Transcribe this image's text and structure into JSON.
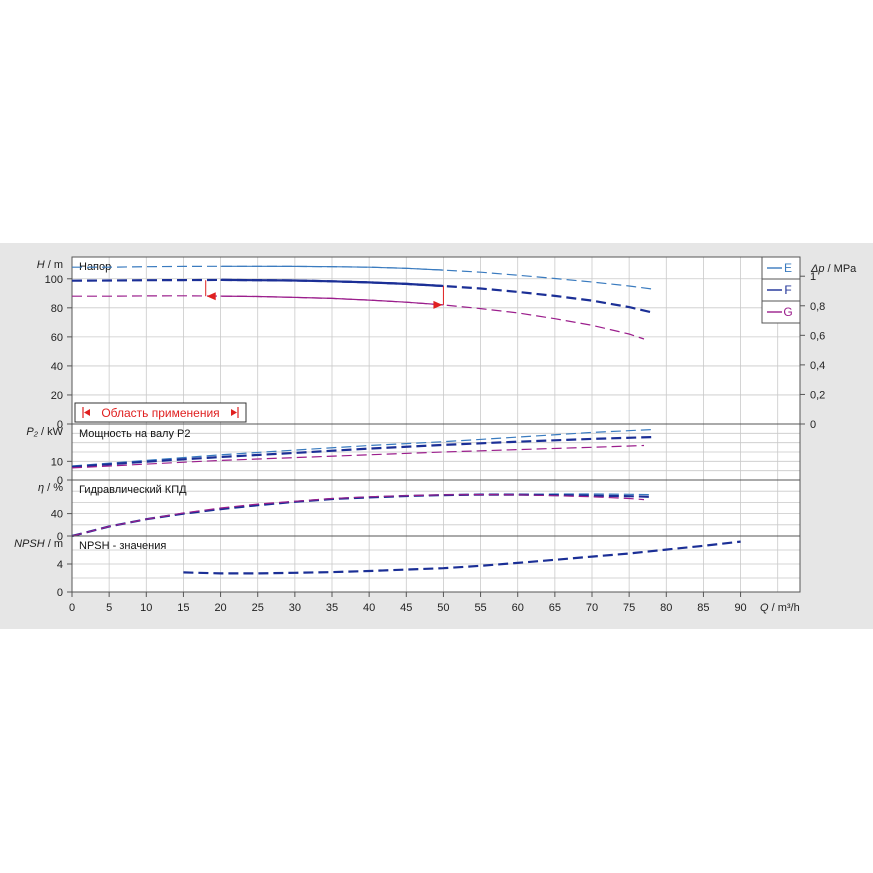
{
  "colors": {
    "E": "#3a7bbf",
    "F": "#1b2f96",
    "G": "#9b1e8c",
    "npsh": "#1b2f96",
    "range": "#e02020",
    "grid": "#c9c9c9",
    "panel": "#e6e6e6",
    "plot_bg": "#ffffff"
  },
  "legend": [
    {
      "label": "E",
      "color": "#3a7bbf"
    },
    {
      "label": "F",
      "color": "#1b2f96"
    },
    {
      "label": "G",
      "color": "#9b1e8c"
    }
  ],
  "range_box_label": "Область применения",
  "chart_data": [
    {
      "type": "line",
      "panel": "head",
      "title": "Напор",
      "ylabel_symbol": "H",
      "ylabel_unit": "m",
      "y2label_symbol": "Δp",
      "y2label_unit": "MPa",
      "xlim": [
        0,
        98
      ],
      "ylim": [
        0,
        115
      ],
      "y2lim": [
        0,
        1.13
      ],
      "yticks": [
        "0",
        "20",
        "40",
        "60",
        "80",
        "100"
      ],
      "y2ticks": [
        "0",
        "0,2",
        "0,4",
        "0,6",
        "0,8",
        "1"
      ],
      "grid": true,
      "series": [
        {
          "name": "E",
          "color": "#3a7bbf",
          "x": [
            0,
            5,
            10,
            15,
            20,
            25,
            30,
            35,
            40,
            45,
            50,
            55,
            60,
            65,
            70,
            75,
            78
          ],
          "y": [
            108,
            108,
            108.3,
            108.5,
            108.6,
            108.6,
            108.5,
            108.3,
            108,
            107.2,
            106,
            104.5,
            102.5,
            100.2,
            97.8,
            95,
            93
          ]
        },
        {
          "name": "F",
          "color": "#1b2f96",
          "x": [
            0,
            5,
            10,
            15,
            20,
            25,
            30,
            35,
            40,
            45,
            50,
            55,
            60,
            65,
            70,
            75,
            78
          ],
          "y": [
            98.7,
            98.8,
            99,
            99.1,
            99.2,
            99,
            98.8,
            98.3,
            97.5,
            96.5,
            95,
            93.3,
            91,
            88.2,
            85,
            80.5,
            77
          ]
        },
        {
          "name": "G",
          "color": "#9b1e8c",
          "x": [
            0,
            5,
            10,
            15,
            20,
            25,
            30,
            35,
            40,
            45,
            50,
            55,
            60,
            65,
            70,
            75,
            77
          ],
          "y": [
            88,
            88,
            88.2,
            88.3,
            88.1,
            87.8,
            87.2,
            86.5,
            85.3,
            83.9,
            82,
            79.5,
            76.5,
            72.5,
            68,
            62,
            58.5
          ]
        }
      ],
      "operating_range": {
        "x": [
          18,
          50
        ]
      }
    },
    {
      "type": "line",
      "panel": "power",
      "title": "Мощность на валу P2",
      "ylabel_symbol": "P₂",
      "ylabel_unit": "kW",
      "xlim": [
        0,
        98
      ],
      "ylim": [
        0,
        30
      ],
      "yticks": [
        "0",
        "10"
      ],
      "grid": true,
      "series": [
        {
          "name": "E",
          "color": "#3a7bbf",
          "x": [
            0,
            10,
            20,
            30,
            40,
            50,
            60,
            70,
            78
          ],
          "y": [
            7.5,
            10.5,
            13.5,
            16,
            18.5,
            20.5,
            23,
            25.5,
            27
          ]
        },
        {
          "name": "F",
          "color": "#1b2f96",
          "x": [
            0,
            10,
            20,
            30,
            40,
            50,
            60,
            70,
            78
          ],
          "y": [
            7,
            9.8,
            12.3,
            14.5,
            16.8,
            18.8,
            20.5,
            22,
            23
          ]
        },
        {
          "name": "G",
          "color": "#9b1e8c",
          "x": [
            0,
            10,
            20,
            30,
            40,
            50,
            60,
            70,
            77
          ],
          "y": [
            6.5,
            8.5,
            10.5,
            12,
            13.5,
            15,
            16.3,
            17.5,
            18.5
          ]
        }
      ]
    },
    {
      "type": "line",
      "panel": "efficiency",
      "title": "Гидравлический КПД",
      "ylabel_symbol": "η",
      "ylabel_unit": "%",
      "xlim": [
        0,
        98
      ],
      "ylim": [
        0,
        100
      ],
      "yticks": [
        "0",
        "40"
      ],
      "grid": true,
      "series": [
        {
          "name": "E",
          "color": "#3a7bbf",
          "x": [
            0,
            5,
            10,
            15,
            20,
            25,
            30,
            35,
            40,
            45,
            50,
            55,
            60,
            65,
            70,
            75,
            78
          ],
          "y": [
            0,
            17,
            30,
            40,
            48,
            55,
            61,
            66,
            69,
            71.5,
            73,
            74,
            74.5,
            75,
            75,
            74.5,
            74
          ]
        },
        {
          "name": "F",
          "color": "#1b2f96",
          "x": [
            0,
            5,
            10,
            15,
            20,
            25,
            30,
            35,
            40,
            45,
            50,
            55,
            60,
            65,
            70,
            75,
            78
          ],
          "y": [
            0,
            17,
            30,
            40,
            48,
            55,
            61,
            66,
            69,
            71.5,
            73,
            74,
            74,
            73,
            72,
            71,
            70
          ]
        },
        {
          "name": "G",
          "color": "#9b1e8c",
          "x": [
            0,
            5,
            10,
            15,
            20,
            25,
            30,
            35,
            40,
            45,
            50,
            55,
            60,
            65,
            70,
            75,
            77
          ],
          "y": [
            0,
            17,
            30,
            41,
            50,
            57,
            62,
            67,
            70,
            72,
            73.5,
            74,
            73.5,
            72,
            70,
            67,
            65
          ]
        }
      ]
    },
    {
      "type": "line",
      "panel": "npsh",
      "title": "NPSH - значения",
      "ylabel_symbol": "NPSH",
      "ylabel_unit": "m",
      "xlabel_symbol": "Q",
      "xlabel_unit": "m³/h",
      "xlim": [
        0,
        98
      ],
      "ylim": [
        0,
        8
      ],
      "yticks": [
        "0",
        "4"
      ],
      "xticks": [
        "0",
        "5",
        "10",
        "15",
        "20",
        "25",
        "30",
        "35",
        "40",
        "45",
        "50",
        "55",
        "60",
        "65",
        "70",
        "75",
        "80",
        "85",
        "90"
      ],
      "grid": true,
      "series": [
        {
          "name": "NPSH",
          "color": "#1b2f96",
          "x": [
            15,
            20,
            25,
            30,
            35,
            40,
            45,
            50,
            55,
            60,
            65,
            70,
            75,
            80,
            85,
            90
          ],
          "y": [
            2.8,
            2.65,
            2.65,
            2.75,
            2.85,
            3,
            3.2,
            3.4,
            3.75,
            4.15,
            4.6,
            5.05,
            5.5,
            6.05,
            6.6,
            7.2
          ]
        }
      ]
    }
  ]
}
